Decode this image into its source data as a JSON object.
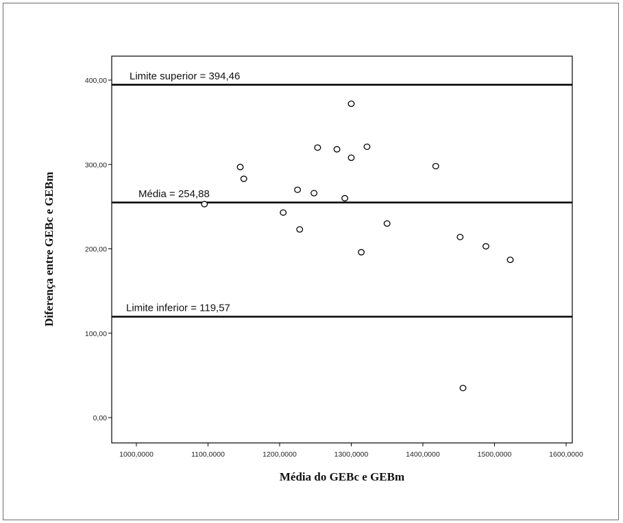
{
  "chart_data": {
    "type": "scatter",
    "title": "",
    "xlabel": "Média do GEBc e GEBm",
    "ylabel": "Diferença entre GEBc e GEBm",
    "xlim": [
      950,
      1650
    ],
    "ylim": [
      -40,
      425
    ],
    "x_ticks": [
      {
        "value": 1000,
        "label": "1000,0000"
      },
      {
        "value": 1100,
        "label": "1100,0000"
      },
      {
        "value": 1200,
        "label": "1200,0000"
      },
      {
        "value": 1300,
        "label": "1300,0000"
      },
      {
        "value": 1400,
        "label": "1400,0000"
      },
      {
        "value": 1500,
        "label": "1500,0000"
      },
      {
        "value": 1600,
        "label": "1600,0000"
      }
    ],
    "y_ticks": [
      {
        "value": 0,
        "label": "0,00"
      },
      {
        "value": 100,
        "label": "100,00"
      },
      {
        "value": 200,
        "label": "200,00"
      },
      {
        "value": 300,
        "label": "300,00"
      },
      {
        "value": 400,
        "label": "400,00"
      }
    ],
    "reference_lines": [
      {
        "value": 394.46,
        "label": "Limite superior = 394,46"
      },
      {
        "value": 254.88,
        "label": "Média = 254,88"
      },
      {
        "value": 119.57,
        "label": "Limite inferior = 119,57"
      }
    ],
    "points": [
      {
        "x": 1095,
        "y": 253
      },
      {
        "x": 1145,
        "y": 297
      },
      {
        "x": 1150,
        "y": 283
      },
      {
        "x": 1205,
        "y": 243
      },
      {
        "x": 1225,
        "y": 270
      },
      {
        "x": 1228,
        "y": 223
      },
      {
        "x": 1248,
        "y": 266
      },
      {
        "x": 1253,
        "y": 320
      },
      {
        "x": 1280,
        "y": 318
      },
      {
        "x": 1291,
        "y": 260
      },
      {
        "x": 1300,
        "y": 372
      },
      {
        "x": 1300,
        "y": 308
      },
      {
        "x": 1314,
        "y": 196
      },
      {
        "x": 1322,
        "y": 321
      },
      {
        "x": 1350,
        "y": 230
      },
      {
        "x": 1418,
        "y": 298
      },
      {
        "x": 1452,
        "y": 214
      },
      {
        "x": 1456,
        "y": 35
      },
      {
        "x": 1488,
        "y": 203
      },
      {
        "x": 1522,
        "y": 187
      }
    ],
    "grid": false,
    "legend": "none"
  }
}
